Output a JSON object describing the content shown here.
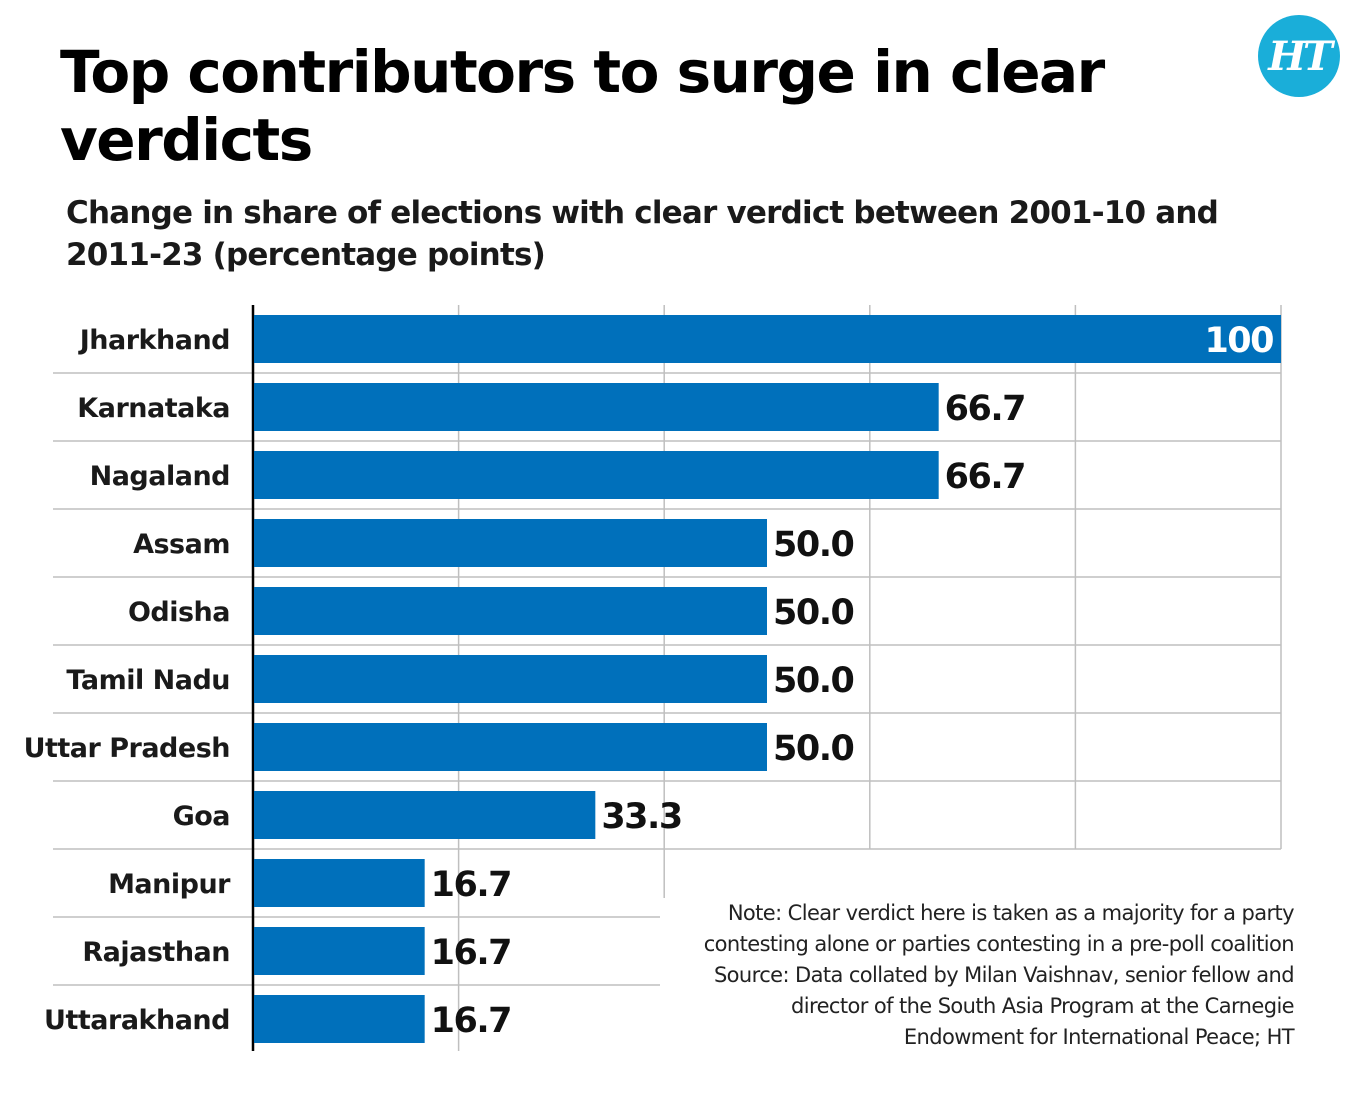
{
  "title": "Top contributors to surge in clear verdicts",
  "subtitle": "Change in share of elections with clear verdict between 2001-10 and 2011-23 (percentage points)",
  "logo": {
    "text": "HT",
    "color": "#1aaed9"
  },
  "colors": {
    "bar": "#0070bb",
    "grid": "#bfbfbf",
    "axis": "#000000"
  },
  "chart_data": {
    "type": "bar",
    "orientation": "horizontal",
    "categories": [
      "Jharkhand",
      "Karnataka",
      "Nagaland",
      "Assam",
      "Odisha",
      "Tamil Nadu",
      "Uttar Pradesh",
      "Goa",
      "Manipur",
      "Rajasthan",
      "Uttarakhand"
    ],
    "values": [
      100,
      66.7,
      66.7,
      50.0,
      50.0,
      50.0,
      50.0,
      33.3,
      16.7,
      16.7,
      16.7
    ],
    "value_labels": [
      "100",
      "66.7",
      "66.7",
      "50.0",
      "50.0",
      "50.0",
      "50.0",
      "33.3",
      "16.7",
      "16.7",
      "16.7"
    ],
    "xlim": [
      0,
      100
    ],
    "grid": true,
    "legend": "none"
  },
  "note_lines": [
    "Note: Clear verdict here is taken as a majority for a party",
    "contesting alone or parties contesting in a pre-poll coalition",
    "Source: Data collated by Milan Vaishnav, senior fellow and",
    "director of the South Asia Program at the Carnegie",
    "Endowment for International Peace; HT"
  ]
}
